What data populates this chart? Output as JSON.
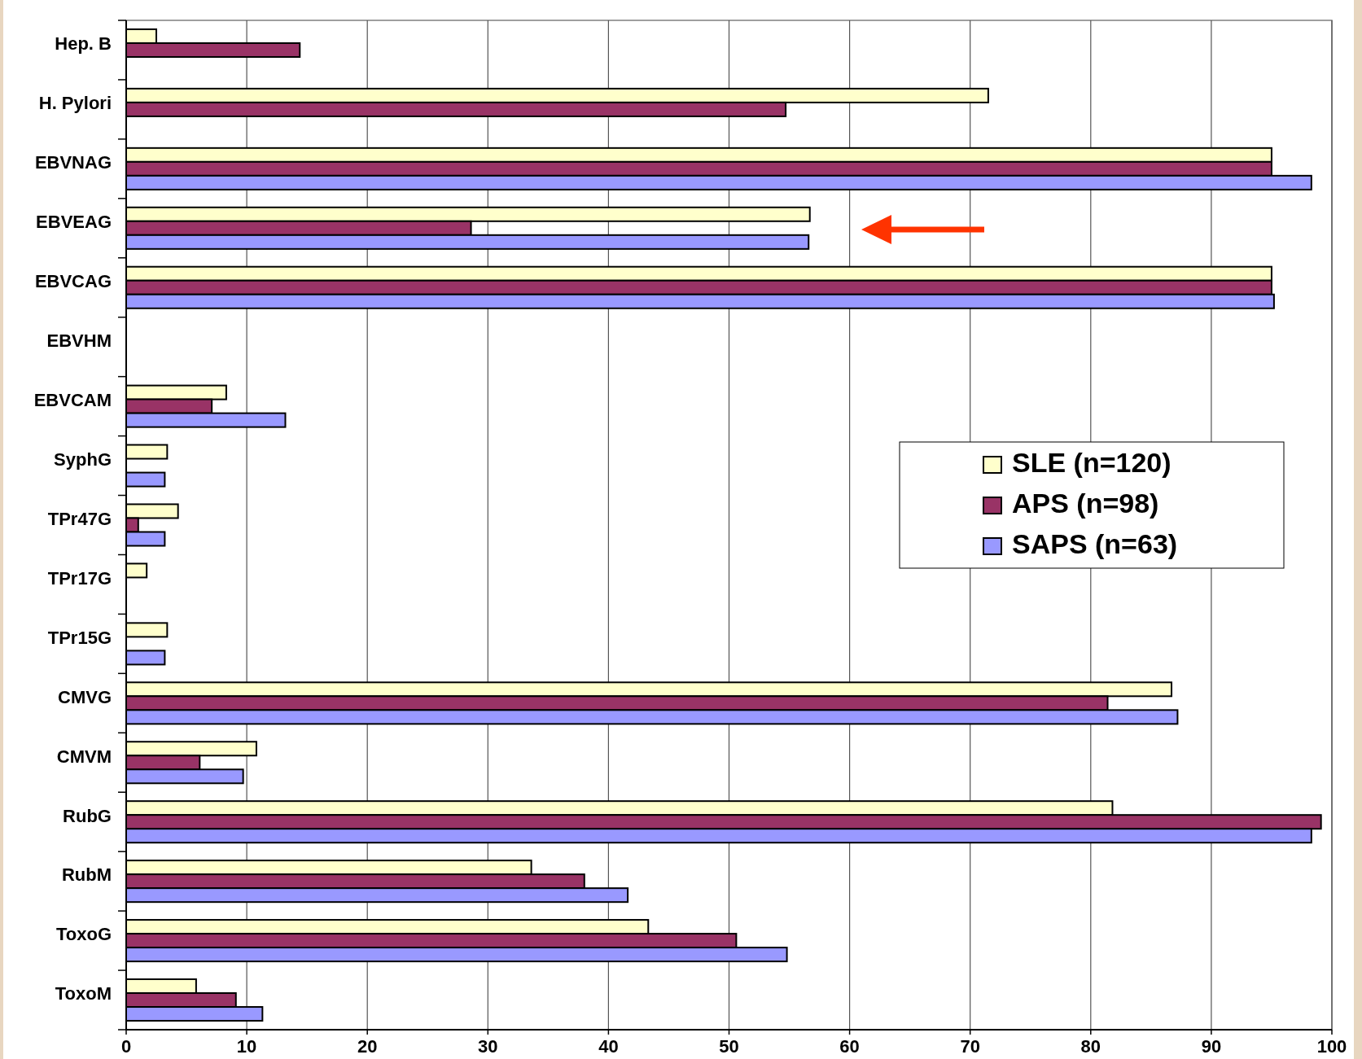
{
  "chart_data": {
    "type": "bar",
    "orientation": "horizontal",
    "categories": [
      "Hep. B",
      "H. Pylori",
      "EBVNAG",
      "EBVEAG",
      "EBVCAG",
      "EBVHM",
      "EBVCAM",
      "SyphG",
      "TPr47G",
      "TPr17G",
      "TPr15G",
      "CMVG",
      "CMVM",
      "RubG",
      "RubM",
      "ToxoG",
      "ToxoM"
    ],
    "series": [
      {
        "name": "SLE (n=120)",
        "color": "#ffffcc",
        "values": [
          2.5,
          71.5,
          95.0,
          56.7,
          95.0,
          null,
          8.3,
          3.4,
          4.3,
          1.7,
          3.4,
          86.7,
          10.8,
          81.8,
          33.6,
          43.3,
          5.8
        ]
      },
      {
        "name": "APS (n=98)",
        "color": "#993366",
        "values": [
          14.4,
          54.7,
          95.0,
          28.6,
          95.0,
          null,
          7.1,
          null,
          1.0,
          null,
          null,
          81.4,
          6.1,
          99.1,
          38.0,
          50.6,
          9.1
        ]
      },
      {
        "name": "SAPS (n=63)",
        "color": "#9999ff",
        "values": [
          null,
          null,
          98.3,
          56.6,
          95.2,
          null,
          13.2,
          3.2,
          3.2,
          null,
          3.2,
          87.2,
          9.7,
          98.3,
          41.6,
          54.8,
          11.3
        ]
      }
    ],
    "xlim": [
      0,
      100
    ],
    "xticks": [
      0,
      10,
      20,
      30,
      40,
      50,
      60,
      70,
      80,
      90,
      100
    ],
    "grid": "x",
    "legend": "right"
  }
}
